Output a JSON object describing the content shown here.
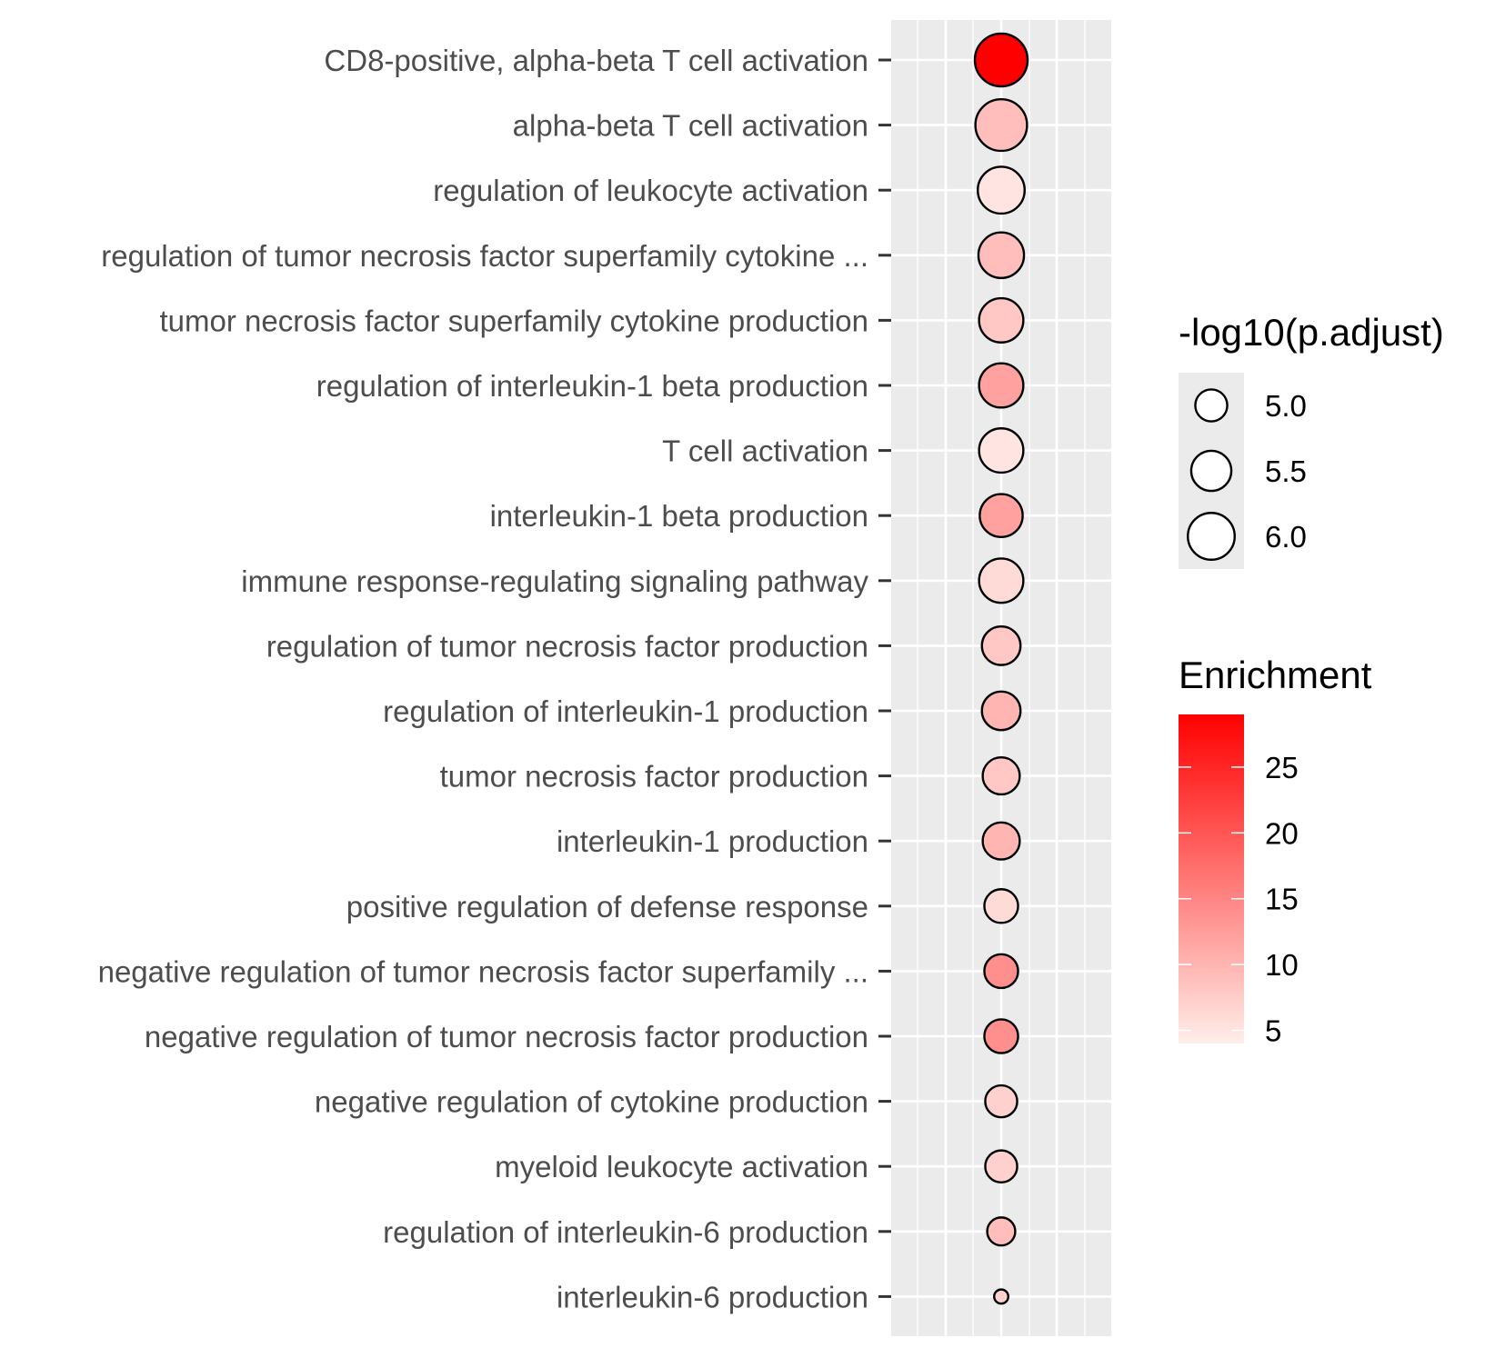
{
  "chart_data": {
    "type": "scatter",
    "categories": [
      "CD8-positive, alpha-beta T cell activation",
      "alpha-beta T cell activation",
      "regulation of leukocyte activation",
      "regulation of tumor necrosis factor superfamily cytokine ...",
      "tumor necrosis factor superfamily cytokine production",
      "regulation of interleukin-1 beta production",
      "T cell activation",
      "interleukin-1 beta production",
      "immune response-regulating signaling pathway",
      "regulation of tumor necrosis factor production",
      "regulation of interleukin-1 production",
      "tumor necrosis factor production",
      "interleukin-1 production",
      "positive regulation of defense response",
      "negative regulation of tumor necrosis factor superfamily ...",
      "negative regulation of tumor necrosis factor production",
      "negative regulation of cytokine production",
      "myeloid leukocyte activation",
      "regulation of interleukin-6 production",
      "interleukin-6 production"
    ],
    "neg_log10_padj": [
      6.5,
      6.4,
      6.0,
      5.9,
      5.8,
      5.8,
      5.8,
      5.7,
      5.8,
      5.4,
      5.4,
      5.3,
      5.3,
      5.1,
      5.1,
      5.1,
      5.0,
      5.0,
      4.8,
      4.3
    ],
    "enrichment": [
      29,
      9,
      5,
      9,
      8,
      12,
      5,
      12,
      6,
      8,
      10,
      8,
      10,
      6,
      14,
      14,
      7,
      7,
      9,
      7
    ],
    "size_legend": {
      "title": "-log10(p.adjust)",
      "breaks": [
        5.0,
        5.5,
        6.0
      ],
      "labels": [
        "5.0",
        "5.5",
        "6.0"
      ]
    },
    "color_legend": {
      "title": "Enrichment",
      "breaks": [
        5,
        10,
        15,
        20,
        25
      ],
      "labels": [
        "5",
        "10",
        "15",
        "20",
        "25"
      ],
      "limits": [
        4,
        29
      ],
      "low_color": "#FFEEEA",
      "high_color": "#FF0000"
    },
    "panel_color": "#EBEBEB",
    "grid_color": "#FFFFFF",
    "point_stroke": "#000000",
    "label_color": "#4D4D4D"
  }
}
